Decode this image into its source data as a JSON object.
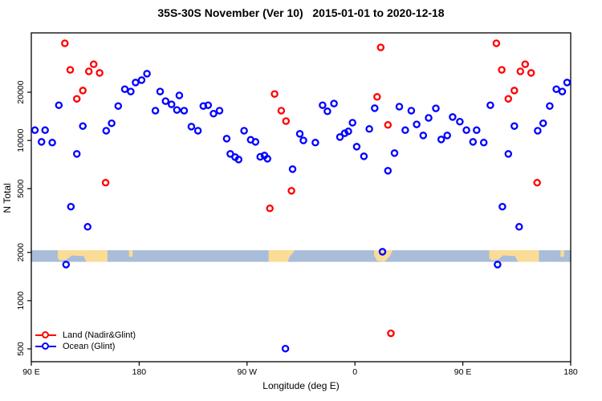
{
  "page": {
    "background": "#ffffff"
  },
  "header": {
    "title": "35S-30S November (Ver 10)   2015-01-01 to 2020-12-18"
  },
  "chart_data": {
    "type": "scatter",
    "title": "35S-30S November (Ver 10)   2015-01-01 to 2020-12-18",
    "xlabel": "Longitude (deg E)",
    "ylabel": "N Total",
    "x_axis": {
      "unit": "deg E (wrapping)",
      "lim": [
        90,
        540
      ],
      "ticks": [
        {
          "value": 90,
          "label": "90 E"
        },
        {
          "value": 180,
          "label": "180"
        },
        {
          "value": 270,
          "label": "90 W"
        },
        {
          "value": 360,
          "label": "0"
        },
        {
          "value": 450,
          "label": "90 E"
        },
        {
          "value": 540,
          "label": "180"
        }
      ]
    },
    "y_axis": {
      "scale": "log10",
      "lim": [
        450,
        47000
      ],
      "ticks": [
        {
          "value": 500,
          "label": "500"
        },
        {
          "value": 1000,
          "label": "1000"
        },
        {
          "value": 2000,
          "label": "2000"
        },
        {
          "value": 5000,
          "label": "5000"
        },
        {
          "value": 10000,
          "label": "10000"
        },
        {
          "value": 20000,
          "label": "20000"
        }
      ]
    },
    "legend": {
      "position": "bottom-left",
      "items": [
        {
          "label": "Land (Nadir&Glint)",
          "color": "#ff0000"
        },
        {
          "label": "Ocean (Glint)",
          "color": "#0000ff"
        }
      ]
    },
    "colors": {
      "land_points": "#ff0000",
      "ocean_points": "#0000ff",
      "map_ocean": "#a9bdd9",
      "map_land": "#fbdc96",
      "axis": "#000000"
    },
    "map_band": {
      "description": "35S-30S world coastline strip drawn across the plot at N=2000",
      "n_top": 2600,
      "n_bottom": 2200,
      "patches": [
        {
          "name": "australia-west-copy",
          "lon1": 112,
          "lon2": 153.5,
          "poly": [
            [
              0,
              0
            ],
            [
              1,
              0
            ],
            [
              1,
              1
            ],
            [
              0.58,
              1
            ],
            [
              0.52,
              0.5
            ],
            [
              0.28,
              0.45
            ],
            [
              0.18,
              0.8
            ],
            [
              0.06,
              0.88
            ],
            [
              0,
              0.72
            ]
          ]
        },
        {
          "name": "new-zealand-west-copy",
          "lon1": 171.5,
          "lon2": 174.5,
          "poly": [
            [
              0,
              0
            ],
            [
              1,
              0
            ],
            [
              1,
              0.55
            ],
            [
              0,
              0.55
            ]
          ]
        },
        {
          "name": "south-america",
          "lon1": 288,
          "lon2": 310,
          "poly": [
            [
              0,
              0
            ],
            [
              1,
              0
            ],
            [
              0.8,
              0.55
            ],
            [
              0.72,
              1
            ],
            [
              0,
              1
            ]
          ]
        },
        {
          "name": "southern-africa",
          "lon1": 376,
          "lon2": 391.5,
          "poly": [
            [
              0,
              0
            ],
            [
              1,
              0
            ],
            [
              0.85,
              0.5
            ],
            [
              0.55,
              1
            ],
            [
              0.15,
              0.9
            ],
            [
              0,
              0.45
            ]
          ]
        },
        {
          "name": "australia-east-copy",
          "lon1": 472,
          "lon2": 513.5,
          "poly": [
            [
              0,
              0
            ],
            [
              1,
              0
            ],
            [
              1,
              1
            ],
            [
              0.58,
              1
            ],
            [
              0.52,
              0.5
            ],
            [
              0.28,
              0.45
            ],
            [
              0.18,
              0.8
            ],
            [
              0.06,
              0.88
            ],
            [
              0,
              0.72
            ]
          ]
        },
        {
          "name": "new-zealand-east-copy",
          "lon1": 531.5,
          "lon2": 534.5,
          "poly": [
            [
              0,
              0
            ],
            [
              1,
              0
            ],
            [
              1,
              0.55
            ],
            [
              0,
              0.55
            ]
          ]
        }
      ]
    },
    "series": [
      {
        "name": "Land (Nadir&Glint)",
        "color": "#ff0000",
        "marker": "open-circle",
        "points": [
          [
            118,
            40400
          ],
          [
            142,
            29900
          ],
          [
            122.5,
            27600
          ],
          [
            138,
            27000
          ],
          [
            147,
            26400
          ],
          [
            133,
            20500
          ],
          [
            128,
            18200
          ],
          [
            152,
            5450
          ],
          [
            293,
            19500
          ],
          [
            298.5,
            15350
          ],
          [
            302.5,
            13200
          ],
          [
            307,
            4850
          ],
          [
            289,
            3770
          ],
          [
            381.5,
            38100
          ],
          [
            378.5,
            18700
          ],
          [
            387.5,
            12500
          ],
          [
            390,
            625
          ],
          [
            478,
            40400
          ],
          [
            502,
            29900
          ],
          [
            482.5,
            27600
          ],
          [
            498,
            27000
          ],
          [
            507,
            26400
          ],
          [
            493,
            20500
          ],
          [
            488,
            18200
          ],
          [
            512,
            5450
          ]
        ]
      },
      {
        "name": "Ocean (Glint)",
        "color": "#0000ff",
        "marker": "open-circle",
        "points": [
          [
            93,
            11600
          ],
          [
            101.5,
            11600
          ],
          [
            98.5,
            9800
          ],
          [
            107.5,
            9700
          ],
          [
            113,
            16600
          ],
          [
            128,
            8240
          ],
          [
            123,
            3860
          ],
          [
            137,
            2890
          ],
          [
            119,
            1680
          ],
          [
            133,
            12300
          ],
          [
            152.5,
            11500
          ],
          [
            157,
            12800
          ],
          [
            162.5,
            16400
          ],
          [
            168,
            20900
          ],
          [
            173,
            20200
          ],
          [
            177,
            23000
          ],
          [
            182,
            23800
          ],
          [
            186.5,
            26100
          ],
          [
            193.5,
            15350
          ],
          [
            197.5,
            20200
          ],
          [
            202,
            17600
          ],
          [
            213.5,
            19100
          ],
          [
            207,
            16800
          ],
          [
            211.5,
            15500
          ],
          [
            217.5,
            15350
          ],
          [
            233.5,
            16400
          ],
          [
            237.5,
            16600
          ],
          [
            242,
            14700
          ],
          [
            247,
            15350
          ],
          [
            223.5,
            12200
          ],
          [
            229,
            11500
          ],
          [
            253,
            10260
          ],
          [
            267.5,
            11500
          ],
          [
            273,
            10100
          ],
          [
            277,
            9800
          ],
          [
            256,
            8240
          ],
          [
            260,
            7870
          ],
          [
            263,
            7600
          ],
          [
            281,
            7910
          ],
          [
            284.5,
            8050
          ],
          [
            287,
            7690
          ],
          [
            308,
            6620
          ],
          [
            314,
            11000
          ],
          [
            317,
            10000
          ],
          [
            302,
            502
          ],
          [
            327,
            9700
          ],
          [
            333,
            16600
          ],
          [
            337,
            15200
          ],
          [
            342.5,
            17000
          ],
          [
            347.5,
            10500
          ],
          [
            351.5,
            11100
          ],
          [
            354.5,
            11400
          ],
          [
            358,
            12900
          ],
          [
            361.5,
            9140
          ],
          [
            367.5,
            7960
          ],
          [
            372,
            11800
          ],
          [
            376.5,
            15900
          ],
          [
            383,
            2020
          ],
          [
            387.5,
            6470
          ],
          [
            393,
            8340
          ],
          [
            397,
            16250
          ],
          [
            402,
            11600
          ],
          [
            407,
            15350
          ],
          [
            411.5,
            12600
          ],
          [
            417,
            10740
          ],
          [
            421.5,
            13830
          ],
          [
            427.5,
            15870
          ],
          [
            432,
            10140
          ],
          [
            437,
            10740
          ],
          [
            441.5,
            14000
          ],
          [
            447.5,
            13100
          ],
          [
            453,
            11600
          ],
          [
            461.5,
            11600
          ],
          [
            458.5,
            9800
          ],
          [
            467.5,
            9700
          ],
          [
            473,
            16600
          ],
          [
            488,
            8240
          ],
          [
            483,
            3860
          ],
          [
            497,
            2890
          ],
          [
            479,
            1680
          ],
          [
            493,
            12300
          ],
          [
            512.5,
            11500
          ],
          [
            517,
            12800
          ],
          [
            522.5,
            16400
          ],
          [
            528,
            20900
          ],
          [
            533,
            20200
          ],
          [
            537,
            23000
          ]
        ]
      }
    ]
  }
}
